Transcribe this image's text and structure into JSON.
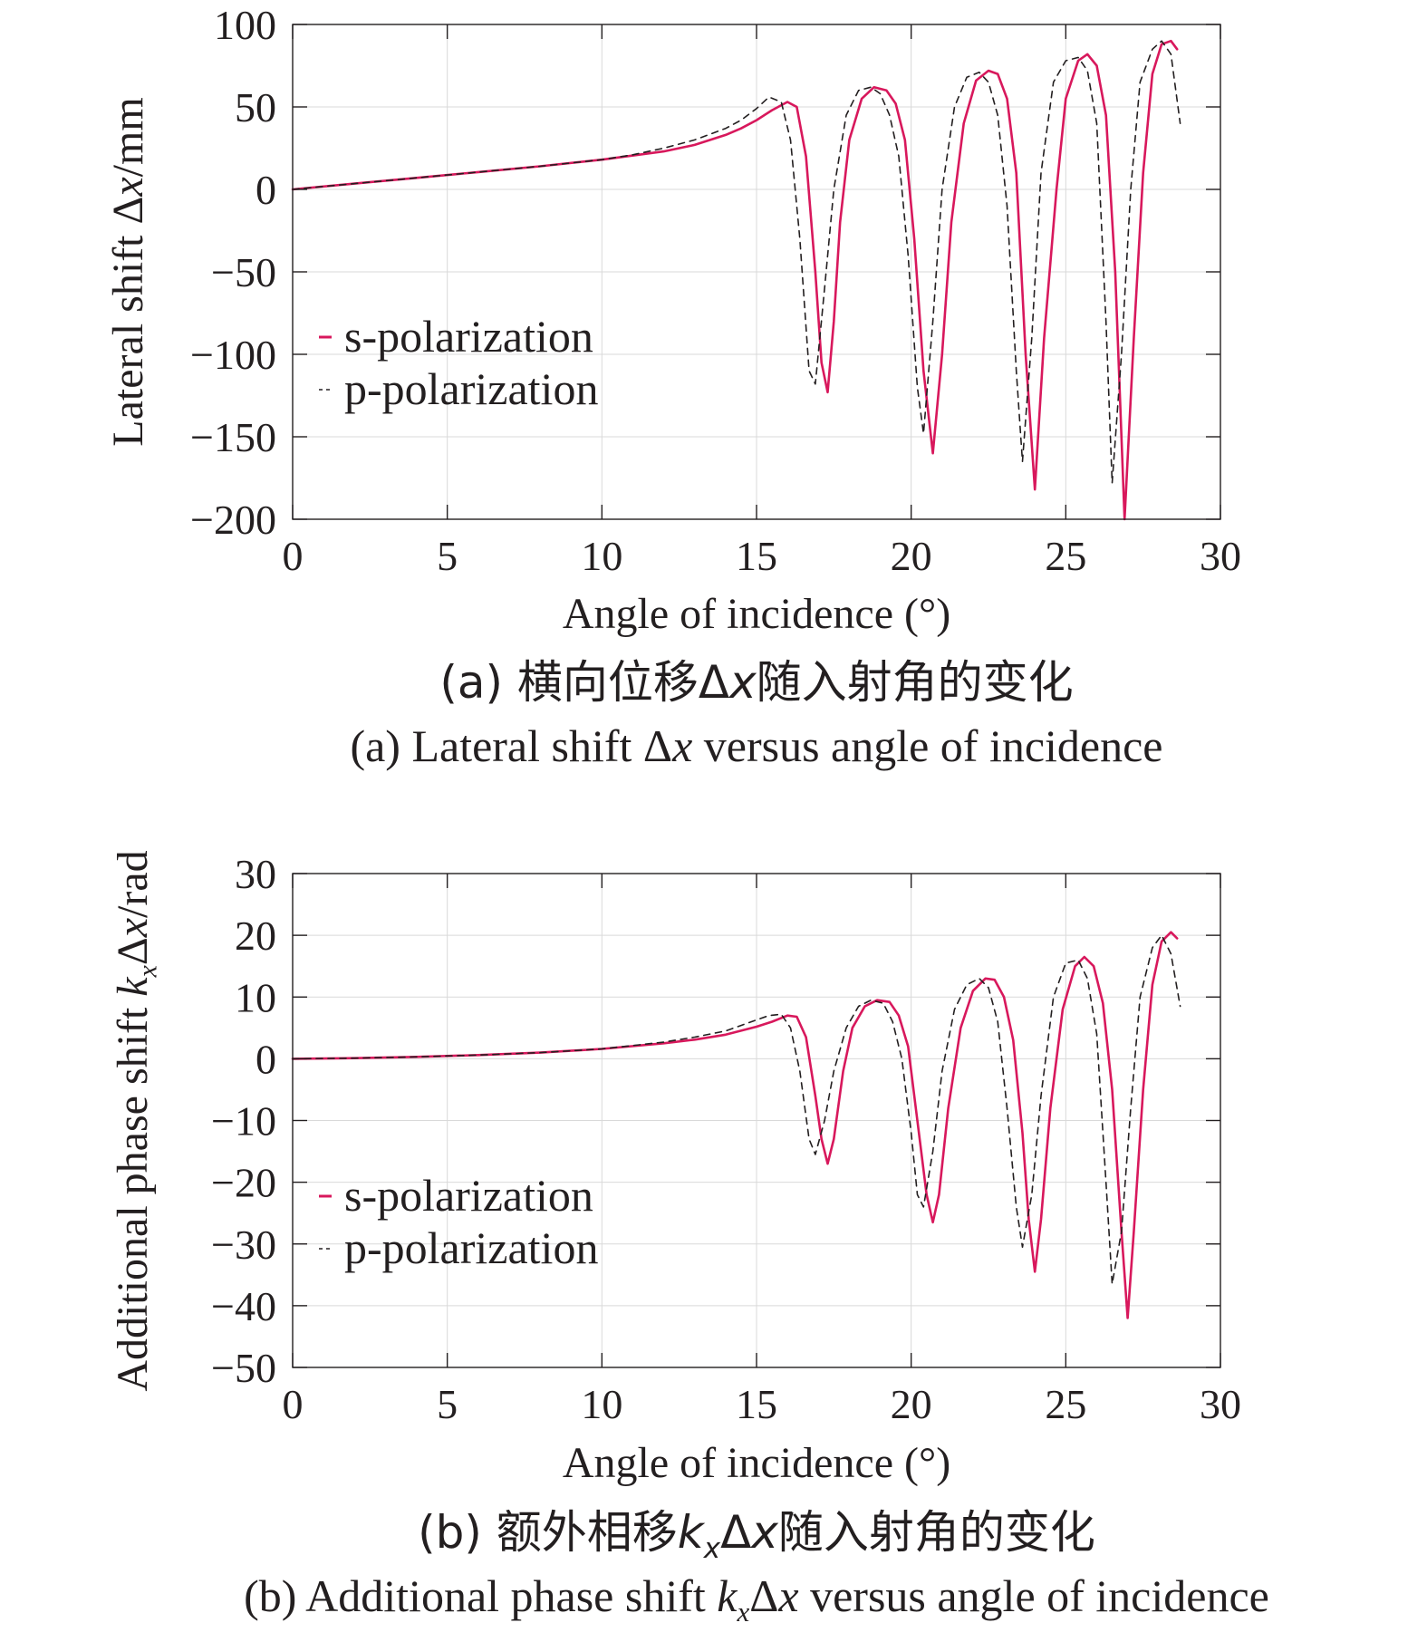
{
  "colors": {
    "s_polarization": "#d8185c",
    "p_polarization": "#231f20"
  },
  "chart_data": [
    {
      "id": "a",
      "type": "line",
      "xlabel": "Angle of incidence (°)",
      "ylabel_html": "Lateral shift Δ<i>x</i>/mm",
      "xlim": [
        0,
        30
      ],
      "ylim": [
        -200,
        100
      ],
      "xticks": [
        "0",
        "5",
        "10",
        "15",
        "20",
        "25",
        "30"
      ],
      "yticks": [
        "100",
        "50",
        "0",
        "−50",
        "−100",
        "−150",
        "−200"
      ],
      "grid": true,
      "legend": {
        "placement": "middle-left",
        "entries": [
          "s-polarization",
          "p-polarization"
        ]
      },
      "caption_cn_html": "(a) 横向位移Δ<i>x</i>随入射角的变化",
      "caption_en_html": "(a) Lateral shift Δ<i>x</i> versus angle of incidence",
      "series": [
        {
          "name": "s-polarization",
          "style": "solid",
          "x": [
            0,
            2,
            4,
            6,
            8,
            10,
            12,
            13,
            14,
            14.5,
            15,
            15.5,
            16,
            16.3,
            16.6,
            16.9,
            17.1,
            17.3,
            17.5,
            17.7,
            18,
            18.4,
            18.8,
            19.2,
            19.5,
            19.8,
            20.1,
            20.4,
            20.7,
            21.0,
            21.3,
            21.7,
            22.1,
            22.5,
            22.8,
            23.1,
            23.4,
            23.7,
            24.0,
            24.3,
            24.7,
            25.0,
            25.4,
            25.7,
            26.0,
            26.3,
            26.6,
            26.9,
            27.2,
            27.5,
            27.8,
            28.1,
            28.4,
            28.6
          ],
          "y": [
            0,
            3.5,
            7,
            10.5,
            14,
            18,
            23,
            27,
            33,
            37,
            42,
            48,
            53,
            50,
            20,
            -50,
            -105,
            -123,
            -80,
            -20,
            30,
            55,
            62,
            60,
            52,
            30,
            -30,
            -110,
            -160,
            -100,
            -20,
            40,
            66,
            72,
            70,
            55,
            10,
            -100,
            -182,
            -90,
            0,
            55,
            78,
            82,
            75,
            45,
            -50,
            -200,
            -90,
            10,
            70,
            88,
            90,
            85
          ]
        },
        {
          "name": "p-polarization",
          "style": "dashed",
          "x": [
            0,
            2,
            4,
            6,
            8,
            10,
            11,
            12,
            13,
            14,
            14.5,
            15,
            15.4,
            15.8,
            16.1,
            16.4,
            16.7,
            16.9,
            17.2,
            17.5,
            17.9,
            18.3,
            18.7,
            19.0,
            19.3,
            19.6,
            19.9,
            20.2,
            20.4,
            20.7,
            21.0,
            21.4,
            21.8,
            22.2,
            22.5,
            22.8,
            23.1,
            23.4,
            23.6,
            23.9,
            24.2,
            24.6,
            25.0,
            25.4,
            25.7,
            26.0,
            26.3,
            26.5,
            26.8,
            27.1,
            27.4,
            27.8,
            28.1,
            28.4,
            28.7
          ],
          "y": [
            0,
            3.5,
            7,
            10.5,
            14,
            18,
            21,
            25,
            30,
            37,
            42,
            49,
            56,
            53,
            30,
            -30,
            -110,
            -118,
            -60,
            0,
            45,
            60,
            62,
            58,
            45,
            20,
            -40,
            -120,
            -148,
            -80,
            0,
            50,
            68,
            71,
            65,
            45,
            -10,
            -110,
            -165,
            -90,
            10,
            65,
            78,
            80,
            72,
            40,
            -80,
            -178,
            -100,
            0,
            65,
            85,
            90,
            82,
            40
          ]
        }
      ]
    },
    {
      "id": "b",
      "type": "line",
      "xlabel": "Angle of incidence (°)",
      "ylabel_html": "Additional phase shift <i>k<sub>x</sub></i>Δ<i>x</i>/rad",
      "xlim": [
        0,
        30
      ],
      "ylim": [
        -50,
        30
      ],
      "xticks": [
        "0",
        "5",
        "10",
        "15",
        "20",
        "25",
        "30"
      ],
      "yticks": [
        "30",
        "20",
        "10",
        "0",
        "−10",
        "−20",
        "−30",
        "−40",
        "−50"
      ],
      "grid": true,
      "legend": {
        "placement": "bottom-left",
        "entries": [
          "s-polarization",
          "p-polarization"
        ]
      },
      "caption_cn_html": "(b) 额外相移<i>k<sub>x</sub></i>Δ<i>x</i>随入射角的变化",
      "caption_en_html": "(b) Additional phase shift <i>k<sub>x</sub></i>Δ<i>x</i> versus angle of incidence",
      "series": [
        {
          "name": "s-polarization",
          "style": "solid",
          "x": [
            0,
            2,
            4,
            6,
            8,
            10,
            12,
            13,
            14,
            15,
            15.5,
            16,
            16.3,
            16.6,
            16.9,
            17.1,
            17.3,
            17.5,
            17.8,
            18.1,
            18.5,
            18.9,
            19.3,
            19.6,
            19.9,
            20.2,
            20.5,
            20.7,
            20.9,
            21.2,
            21.6,
            22.0,
            22.4,
            22.7,
            23.0,
            23.3,
            23.6,
            23.8,
            24.0,
            24.2,
            24.5,
            24.9,
            25.3,
            25.6,
            25.9,
            26.2,
            26.5,
            26.8,
            27.0,
            27.2,
            27.5,
            27.8,
            28.1,
            28.4,
            28.6
          ],
          "y": [
            0,
            0.1,
            0.3,
            0.6,
            1.0,
            1.6,
            2.5,
            3.1,
            3.9,
            5.2,
            6.0,
            7.0,
            6.8,
            3.5,
            -6,
            -13,
            -17,
            -13,
            -2,
            5,
            8.5,
            9.5,
            9.2,
            7,
            2,
            -10,
            -22,
            -26.5,
            -22,
            -8,
            5,
            11,
            13,
            12.8,
            10,
            3,
            -12,
            -26,
            -34.5,
            -26,
            -8,
            8,
            15,
            16.5,
            15,
            9,
            -5,
            -28,
            -42,
            -28,
            -5,
            12,
            19,
            20.5,
            19.5
          ]
        },
        {
          "name": "p-polarization",
          "style": "dashed",
          "x": [
            0,
            2,
            4,
            6,
            8,
            10,
            12,
            13,
            14,
            15,
            15.4,
            15.8,
            16.1,
            16.4,
            16.7,
            16.9,
            17.2,
            17.5,
            17.9,
            18.3,
            18.7,
            19.1,
            19.4,
            19.7,
            20.0,
            20.2,
            20.4,
            20.7,
            21.0,
            21.4,
            21.8,
            22.2,
            22.5,
            22.8,
            23.1,
            23.4,
            23.6,
            23.9,
            24.2,
            24.6,
            25.0,
            25.4,
            25.7,
            26.0,
            26.3,
            26.5,
            26.8,
            27.1,
            27.4,
            27.8,
            28.1,
            28.4,
            28.7
          ],
          "y": [
            0,
            0.1,
            0.3,
            0.6,
            1.0,
            1.6,
            2.7,
            3.5,
            4.5,
            6.3,
            7.0,
            7.2,
            5.0,
            -2,
            -13,
            -15.5,
            -10,
            -2,
            5,
            8.5,
            9.5,
            9,
            6,
            0,
            -12,
            -22,
            -24,
            -15,
            -2,
            8,
            12,
            13,
            11.5,
            6,
            -8,
            -24,
            -30.5,
            -22,
            -6,
            10,
            15.5,
            16,
            13,
            4,
            -20,
            -36.5,
            -28,
            -8,
            10,
            18,
            20,
            17,
            8.5
          ]
        }
      ]
    }
  ]
}
